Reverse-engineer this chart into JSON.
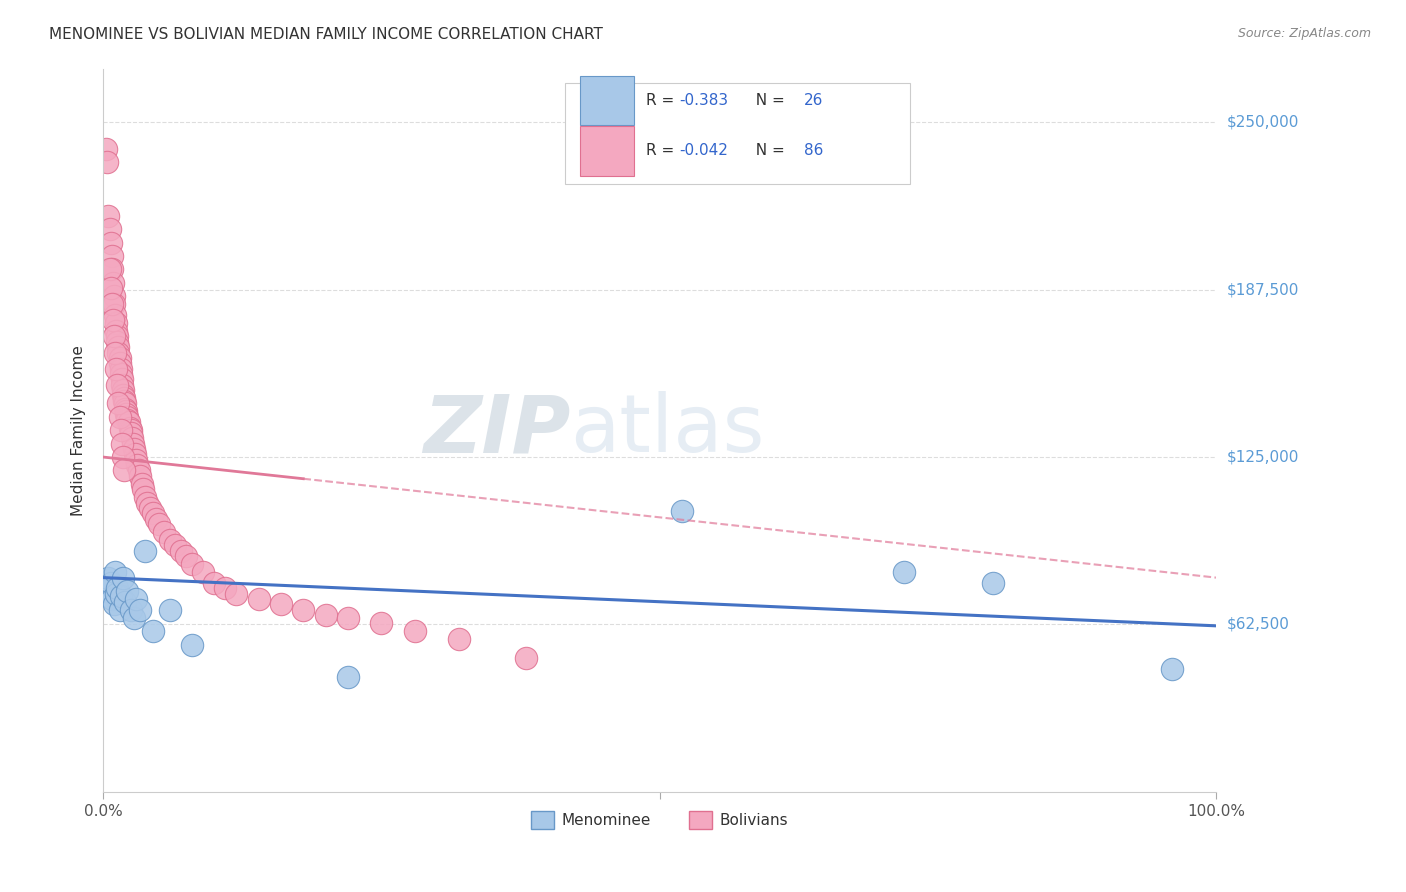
{
  "title": "MENOMINEE VS BOLIVIAN MEDIAN FAMILY INCOME CORRELATION CHART",
  "source": "Source: ZipAtlas.com",
  "ylabel": "Median Family Income",
  "ytick_values": [
    62500,
    125000,
    187500,
    250000
  ],
  "ytick_labels": [
    "$62,500",
    "$125,000",
    "$187,500",
    "$250,000"
  ],
  "ylim": [
    0,
    270000
  ],
  "xlim": [
    0.0,
    1.0
  ],
  "menominee_color": "#a8c8e8",
  "bolivian_color": "#f4a8c0",
  "menominee_edge": "#6898c8",
  "bolivian_edge": "#e07090",
  "trendline_men_color": "#4472c4",
  "trendline_bol_color": "#e07898",
  "menominee_R": "-0.383",
  "menominee_N": "26",
  "bolivian_R": "-0.042",
  "bolivian_N": "86",
  "menominee_x": [
    0.003,
    0.005,
    0.007,
    0.008,
    0.01,
    0.011,
    0.012,
    0.013,
    0.015,
    0.016,
    0.018,
    0.02,
    0.022,
    0.025,
    0.028,
    0.03,
    0.033,
    0.038,
    0.045,
    0.06,
    0.08,
    0.22,
    0.52,
    0.72,
    0.8,
    0.96
  ],
  "menominee_y": [
    75000,
    80000,
    78000,
    72000,
    70000,
    82000,
    74000,
    76000,
    68000,
    73000,
    80000,
    71000,
    75000,
    68000,
    65000,
    72000,
    68000,
    90000,
    60000,
    68000,
    55000,
    43000,
    105000,
    82000,
    78000,
    46000
  ],
  "bolivian_x": [
    0.003,
    0.004,
    0.005,
    0.006,
    0.007,
    0.008,
    0.008,
    0.009,
    0.01,
    0.01,
    0.011,
    0.012,
    0.012,
    0.013,
    0.013,
    0.014,
    0.014,
    0.015,
    0.015,
    0.016,
    0.016,
    0.017,
    0.017,
    0.018,
    0.018,
    0.019,
    0.019,
    0.02,
    0.02,
    0.021,
    0.021,
    0.022,
    0.022,
    0.023,
    0.024,
    0.025,
    0.025,
    0.026,
    0.027,
    0.028,
    0.029,
    0.03,
    0.031,
    0.032,
    0.033,
    0.035,
    0.036,
    0.038,
    0.04,
    0.042,
    0.045,
    0.048,
    0.05,
    0.055,
    0.06,
    0.065,
    0.07,
    0.075,
    0.08,
    0.09,
    0.1,
    0.11,
    0.12,
    0.14,
    0.16,
    0.18,
    0.2,
    0.22,
    0.25,
    0.28,
    0.32,
    0.38,
    0.006,
    0.007,
    0.008,
    0.009,
    0.01,
    0.011,
    0.012,
    0.013,
    0.014,
    0.015,
    0.016,
    0.017,
    0.018,
    0.019
  ],
  "bolivian_y": [
    240000,
    235000,
    215000,
    210000,
    205000,
    200000,
    195000,
    190000,
    185000,
    182000,
    178000,
    175000,
    172000,
    170000,
    168000,
    166000,
    164000,
    162000,
    160000,
    158000,
    156000,
    154000,
    152000,
    150000,
    148000,
    147000,
    146000,
    145000,
    143000,
    142000,
    141000,
    140000,
    139000,
    138000,
    136000,
    135000,
    134000,
    132000,
    130000,
    128000,
    126000,
    124000,
    122000,
    120000,
    118000,
    115000,
    113000,
    110000,
    108000,
    106000,
    104000,
    102000,
    100000,
    97000,
    94000,
    92000,
    90000,
    88000,
    85000,
    82000,
    78000,
    76000,
    74000,
    72000,
    70000,
    68000,
    66000,
    65000,
    63000,
    60000,
    57000,
    50000,
    195000,
    188000,
    182000,
    176000,
    170000,
    164000,
    158000,
    152000,
    145000,
    140000,
    135000,
    130000,
    125000,
    120000
  ]
}
